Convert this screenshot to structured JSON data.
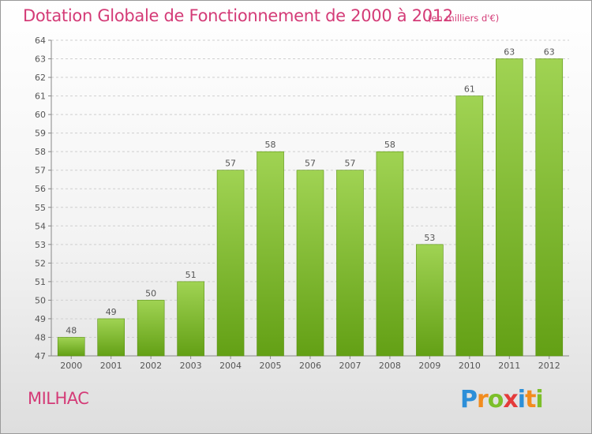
{
  "header": {
    "title": "Dotation Globale de Fonctionnement de 2000 à 2012",
    "subtitle": "(en milliers d'€)"
  },
  "footer": {
    "place": "MILHAC",
    "logo_letters": [
      "P",
      "r",
      "o",
      "x",
      "i",
      "t",
      "i"
    ],
    "logo_colors": [
      "#2d8fd8",
      "#f28c1e",
      "#7cbf2a",
      "#e43b3b",
      "#2d8fd8",
      "#f28c1e",
      "#7cbf2a"
    ]
  },
  "colors": {
    "bar_light": "#a0d353",
    "bar_dark": "#63a015",
    "bar_edge": "#5a9212",
    "grid": "#cfcfcf",
    "text": "#d43b77"
  },
  "chart_data": {
    "type": "bar",
    "categories": [
      "2000",
      "2001",
      "2002",
      "2003",
      "2004",
      "2005",
      "2006",
      "2007",
      "2008",
      "2009",
      "2010",
      "2011",
      "2012"
    ],
    "values": [
      48,
      49,
      50,
      51,
      57,
      58,
      57,
      57,
      58,
      53,
      61,
      63,
      63
    ],
    "title": "Dotation Globale de Fonctionnement de 2000 à 2012",
    "subtitle": "(en milliers d'€)",
    "ylim": [
      47,
      64
    ],
    "yticks": [
      47,
      48,
      49,
      50,
      51,
      52,
      53,
      54,
      55,
      56,
      57,
      58,
      59,
      60,
      61,
      62,
      63,
      64
    ],
    "grid": true,
    "legend": "none"
  }
}
